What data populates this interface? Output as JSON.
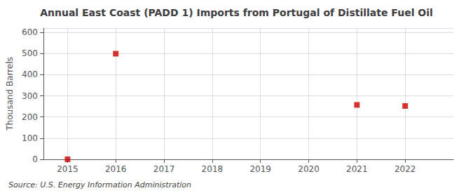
{
  "chart_data": {
    "type": "scatter",
    "title": "Annual East Coast (PADD 1) Imports from Portugal of Distillate Fuel Oil",
    "ylabel": "Thousand Barrels",
    "annotations": [
      "Source: U.S. Energy Information Administration"
    ],
    "x": [
      2015,
      2016,
      2021,
      2022
    ],
    "values": [
      0,
      499,
      257,
      252
    ],
    "color": "#cc0000",
    "marker": "square",
    "xlim": [
      2014.5,
      2023.0
    ],
    "xticks": [
      2015,
      2016,
      2017,
      2018,
      2019,
      2020,
      2021,
      2022
    ],
    "ylim": [
      0,
      620
    ],
    "yticks": [
      0,
      100,
      200,
      300,
      400,
      500,
      600
    ],
    "grid": true
  }
}
